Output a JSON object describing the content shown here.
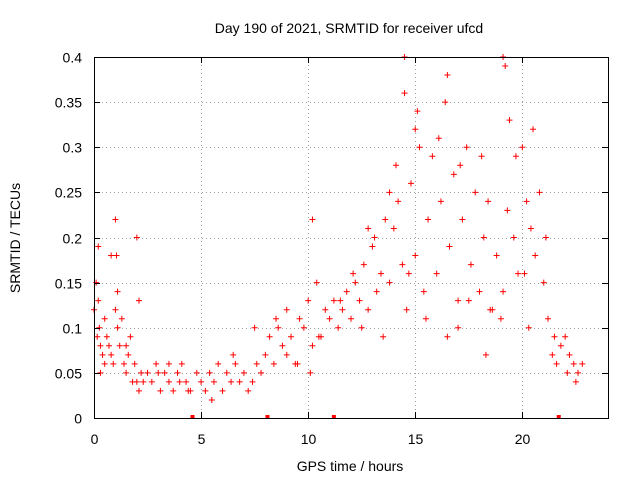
{
  "colors": {
    "points": "#ff0000",
    "marker": "#ff0000",
    "axis": "#000000",
    "grid": "#a0a0a0",
    "background": "#ffffff"
  },
  "chart_data": {
    "type": "scatter",
    "title": "Day 190 of 2021, SRMTID for receiver ufcd",
    "xlabel": "GPS time / hours",
    "ylabel": "SRMTID / TECUs",
    "xlim": [
      0,
      24
    ],
    "ylim": [
      0,
      0.4
    ],
    "grid": true,
    "marker": "+",
    "x_ticks": [
      0,
      5,
      10,
      15,
      20
    ],
    "x_tick_labels": [
      "0",
      "5",
      "10",
      "15",
      "20"
    ],
    "y_ticks": [
      0,
      0.05,
      0.1,
      0.15,
      0.2,
      0.25,
      0.3,
      0.35,
      0.4
    ],
    "y_tick_labels": [
      "0",
      "0.05",
      "0.1",
      "0.15",
      "0.2",
      "0.25",
      "0.3",
      "0.35",
      "0.4"
    ],
    "gap_markers_x": [
      4.6,
      8.1,
      11.2,
      21.7
    ],
    "series": [
      {
        "name": "SRMTID",
        "x": [
          0.0,
          0.1,
          0.15,
          0.2,
          0.25,
          0.3,
          0.4,
          0.5,
          0.6,
          0.7,
          0.8,
          0.9,
          1.0,
          1.05,
          1.1,
          1.2,
          1.3,
          1.4,
          1.5,
          1.6,
          1.7,
          1.8,
          1.9,
          2.0,
          2.1,
          2.2,
          2.3,
          2.5,
          2.7,
          2.9,
          3.1,
          3.3,
          3.5,
          3.7,
          3.9,
          4.1,
          4.3,
          4.5,
          4.8,
          5.0,
          5.2,
          5.4,
          5.6,
          5.8,
          6.0,
          6.2,
          6.4,
          6.6,
          6.8,
          7.0,
          7.2,
          7.4,
          7.6,
          7.8,
          8.0,
          8.2,
          8.4,
          8.6,
          8.8,
          9.0,
          9.2,
          9.4,
          9.6,
          9.8,
          10.0,
          10.2,
          10.4,
          10.6,
          10.8,
          11.0,
          11.2,
          11.4,
          11.6,
          11.8,
          12.0,
          12.2,
          12.4,
          12.6,
          12.8,
          13.0,
          13.2,
          13.4,
          13.6,
          13.8,
          14.0,
          14.2,
          14.4,
          14.5,
          14.6,
          14.8,
          15.0,
          15.2,
          15.4,
          15.6,
          15.8,
          16.0,
          16.2,
          16.4,
          16.6,
          16.8,
          17.0,
          17.2,
          17.4,
          17.6,
          17.8,
          18.0,
          18.2,
          18.4,
          18.6,
          18.8,
          19.0,
          19.1,
          19.2,
          19.4,
          19.6,
          19.8,
          20.0,
          20.2,
          20.4,
          20.6,
          20.8,
          21.0,
          21.2,
          21.4,
          21.6,
          21.8,
          22.0,
          22.2,
          22.4,
          22.6,
          22.8,
          0.2,
          0.3,
          0.5,
          0.8,
          1.0,
          1.1,
          1.5,
          2.0,
          2.1,
          3.0,
          3.5,
          4.0,
          4.4,
          5.5,
          6.5,
          7.5,
          8.5,
          9.0,
          9.5,
          10.1,
          10.5,
          11.5,
          12.1,
          12.5,
          13.1,
          13.5,
          14.1,
          14.7,
          15.1,
          15.5,
          16.1,
          16.5,
          17.1,
          17.5,
          18.1,
          18.5,
          19.3,
          19.7,
          20.1,
          20.5,
          21.1,
          21.5,
          22.1,
          22.5,
          14.5,
          16.5,
          19.1,
          15.0,
          17.0,
          13.8,
          12.8,
          10.2,
          20.3,
          18.3
        ],
        "y": [
          0.12,
          0.15,
          0.09,
          0.19,
          0.1,
          0.08,
          0.07,
          0.06,
          0.09,
          0.08,
          0.07,
          0.06,
          0.22,
          0.18,
          0.1,
          0.08,
          0.11,
          0.06,
          0.05,
          0.07,
          0.09,
          0.04,
          0.06,
          0.2,
          0.13,
          0.05,
          0.04,
          0.05,
          0.04,
          0.06,
          0.03,
          0.05,
          0.04,
          0.03,
          0.05,
          0.06,
          0.04,
          0.03,
          0.05,
          0.04,
          0.03,
          0.05,
          0.04,
          0.06,
          0.03,
          0.05,
          0.04,
          0.06,
          0.04,
          0.05,
          0.03,
          0.04,
          0.06,
          0.05,
          0.07,
          0.09,
          0.06,
          0.1,
          0.08,
          0.07,
          0.09,
          0.06,
          0.11,
          0.1,
          0.13,
          0.08,
          0.15,
          0.09,
          0.12,
          0.11,
          0.13,
          0.1,
          0.12,
          0.14,
          0.11,
          0.15,
          0.13,
          0.17,
          0.12,
          0.19,
          0.14,
          0.16,
          0.22,
          0.15,
          0.21,
          0.24,
          0.17,
          0.36,
          0.12,
          0.26,
          0.18,
          0.3,
          0.14,
          0.22,
          0.29,
          0.16,
          0.24,
          0.35,
          0.19,
          0.27,
          0.13,
          0.22,
          0.3,
          0.17,
          0.25,
          0.14,
          0.2,
          0.24,
          0.12,
          0.18,
          0.11,
          0.14,
          0.39,
          0.33,
          0.2,
          0.16,
          0.3,
          0.24,
          0.21,
          0.18,
          0.25,
          0.15,
          0.11,
          0.07,
          0.06,
          0.08,
          0.09,
          0.07,
          0.06,
          0.05,
          0.06,
          0.13,
          0.05,
          0.11,
          0.18,
          0.12,
          0.14,
          0.08,
          0.04,
          0.03,
          0.05,
          0.06,
          0.04,
          0.03,
          0.02,
          0.07,
          0.1,
          0.11,
          0.12,
          0.06,
          0.05,
          0.09,
          0.13,
          0.16,
          0.1,
          0.2,
          0.09,
          0.28,
          0.16,
          0.34,
          0.11,
          0.31,
          0.09,
          0.28,
          0.13,
          0.29,
          0.12,
          0.23,
          0.29,
          0.16,
          0.32,
          0.2,
          0.09,
          0.05,
          0.04,
          0.4,
          0.38,
          0.4,
          0.32,
          0.1,
          0.25,
          0.21,
          0.22,
          0.1,
          0.07
        ]
      }
    ]
  }
}
